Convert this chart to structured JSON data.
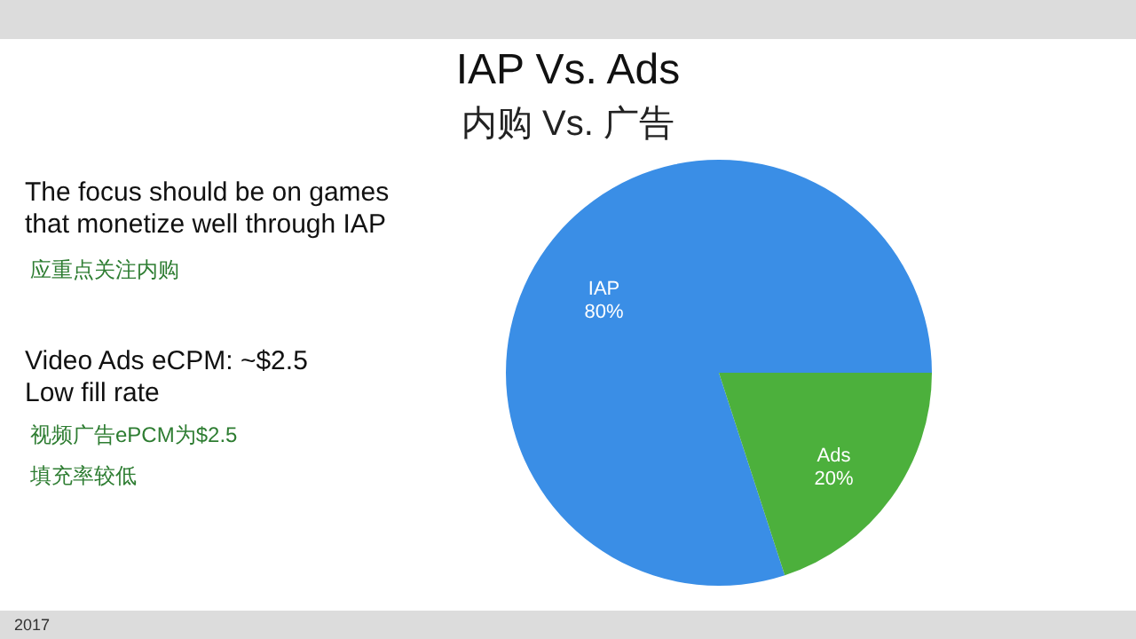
{
  "chart_data": {
    "type": "pie",
    "title": "IAP Vs. Ads",
    "subtitle": "内购 Vs. 广告",
    "categories": [
      "IAP",
      "Ads"
    ],
    "values": [
      80,
      20
    ],
    "colors": [
      "#3a8ee6",
      "#4cb03c"
    ],
    "value_labels": [
      "80%",
      "20%"
    ],
    "annotations": [
      "The focus should be on games\nthat monetize well through IAP",
      "应重点关注内购",
      "Video Ads eCPM: ~$2.5\nLow fill rate",
      "视频广告ePCM为$2.5",
      "填充率较低",
      "2017"
    ]
  }
}
